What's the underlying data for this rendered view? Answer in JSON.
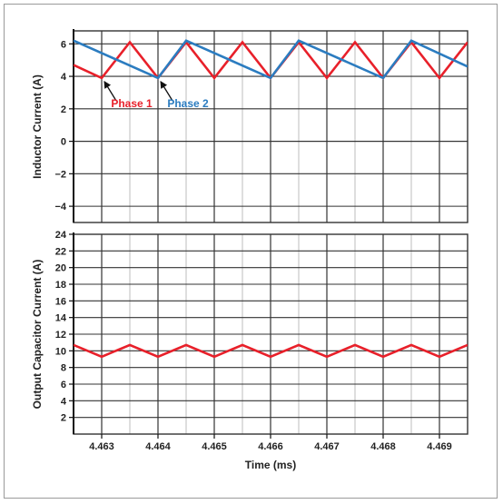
{
  "chart_data": [
    {
      "type": "line",
      "title": "",
      "xlabel": "",
      "ylabel": "Inductor Current (A)",
      "xlim": [
        4.4625,
        4.4695
      ],
      "ylim": [
        -5,
        6.8
      ],
      "y_ticks": [
        6,
        4,
        2,
        0,
        -2,
        -4
      ],
      "y_tick_labels": [
        "6",
        "4",
        "2",
        "0",
        "−2",
        "−4"
      ],
      "grid": true,
      "series": [
        {
          "name": "Phase 1",
          "color": "#e8202a",
          "x": [
            4.4625,
            4.463,
            4.4635,
            4.464,
            4.4645,
            4.465,
            4.4655,
            4.466,
            4.4665,
            4.467,
            4.4675,
            4.468,
            4.4685,
            4.469,
            4.4695
          ],
          "y": [
            4.7,
            3.9,
            6.1,
            3.9,
            6.1,
            3.9,
            6.1,
            3.9,
            6.1,
            3.9,
            6.1,
            3.9,
            6.1,
            3.9,
            6.1
          ]
        },
        {
          "name": "Phase 2",
          "color": "#2b7cc0",
          "x": [
            4.4625,
            4.464,
            4.4645,
            4.466,
            4.4665,
            4.468,
            4.4685,
            4.4695
          ],
          "y": [
            6.2,
            3.9,
            6.2,
            3.9,
            6.2,
            3.9,
            6.2,
            4.6
          ]
        }
      ],
      "annotations": [
        {
          "text": "Phase 1",
          "color": "#e8202a",
          "target_x": 4.463,
          "target_y": 3.9
        },
        {
          "text": "Phase 2",
          "color": "#2b7cc0",
          "target_x": 4.464,
          "target_y": 3.9
        }
      ]
    },
    {
      "type": "line",
      "title": "",
      "xlabel": "Time (ms)",
      "ylabel": "Output Capacitor Current (A)",
      "xlim": [
        4.4625,
        4.4695
      ],
      "ylim": [
        0,
        24
      ],
      "y_ticks": [
        24,
        22,
        20,
        18,
        16,
        14,
        12,
        10,
        8,
        6,
        4,
        2
      ],
      "y_tick_labels": [
        "24",
        "22",
        "20",
        "18",
        "16",
        "14",
        "12",
        "10",
        "8",
        "6",
        "4",
        "2"
      ],
      "x_ticks": [
        4.463,
        4.464,
        4.465,
        4.466,
        4.467,
        4.468,
        4.469
      ],
      "x_tick_labels": [
        "4.463",
        "4.464",
        "4.465",
        "4.466",
        "4.467",
        "4.468",
        "4.469"
      ],
      "grid": true,
      "series": [
        {
          "name": "",
          "color": "#e8202a",
          "x": [
            4.4625,
            4.463,
            4.4635,
            4.464,
            4.4645,
            4.465,
            4.4655,
            4.466,
            4.4665,
            4.467,
            4.4675,
            4.468,
            4.4685,
            4.469,
            4.4695
          ],
          "y": [
            10.7,
            9.3,
            10.7,
            9.3,
            10.7,
            9.3,
            10.7,
            9.3,
            10.7,
            9.3,
            10.7,
            9.3,
            10.7,
            9.3,
            10.7
          ]
        }
      ]
    }
  ]
}
